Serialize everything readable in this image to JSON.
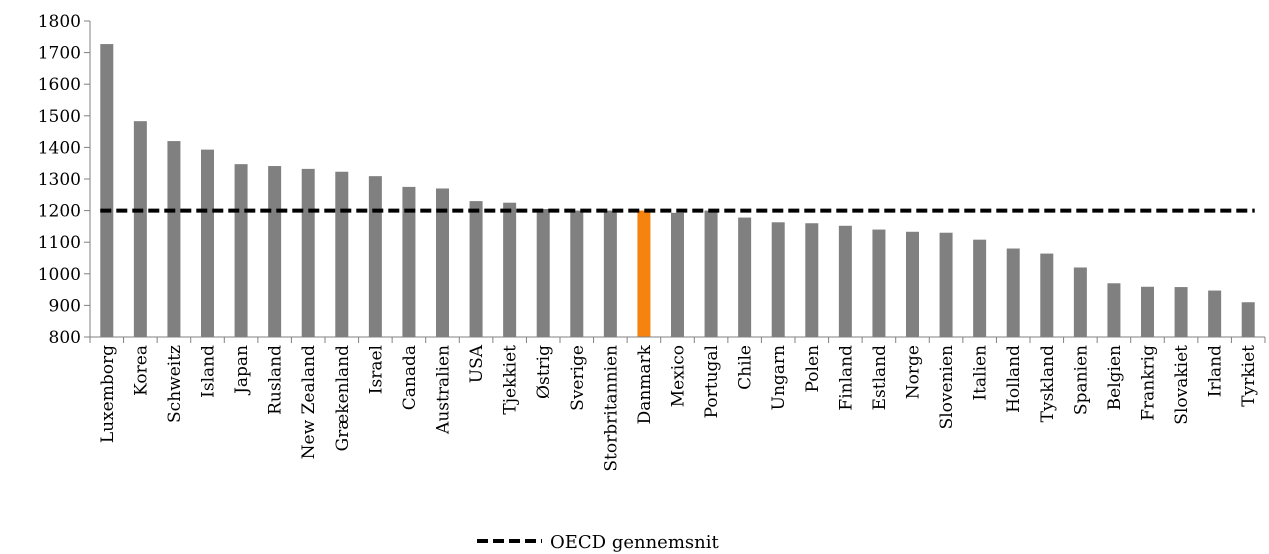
{
  "chart_data": {
    "type": "bar",
    "categories": [
      "Luxemborg",
      "Korea",
      "Schweitz",
      "Island",
      "Japan",
      "Rusland",
      "New Zealand",
      "Grækenland",
      "Israel",
      "Canada",
      "Australien",
      "USA",
      "Tjekkiet",
      "Østrig",
      "Sverige",
      "Storbritannien",
      "Danmark",
      "Mexico",
      "Portugal",
      "Chile",
      "Ungarn",
      "Polen",
      "Finland",
      "Estland",
      "Norge",
      "Slovenien",
      "Italien",
      "Holland",
      "Tyskland",
      "Spanien",
      "Belgien",
      "Frankrig",
      "Slovakiet",
      "Irland",
      "Tyrkiet"
    ],
    "values": [
      1727,
      1483,
      1420,
      1393,
      1347,
      1341,
      1332,
      1323,
      1309,
      1275,
      1270,
      1230,
      1225,
      1205,
      1200,
      1200,
      1200,
      1193,
      1200,
      1178,
      1163,
      1160,
      1152,
      1140,
      1133,
      1130,
      1108,
      1080,
      1064,
      1020,
      970,
      959,
      958,
      947,
      910
    ],
    "highlight": "Danmark",
    "bar_color": "#808080",
    "highlight_color": "#f7830f",
    "yticks": [
      800,
      900,
      1000,
      1100,
      1200,
      1300,
      1400,
      1500,
      1600,
      1700,
      1800
    ],
    "ylim": [
      800,
      1800
    ],
    "reference_line": {
      "name": "OECD gennemsnit",
      "value": 1200,
      "style": "dashed",
      "color": "#000000"
    },
    "legend_position": "bottom",
    "title": "",
    "xlabel": "",
    "ylabel": "",
    "grid": false
  }
}
